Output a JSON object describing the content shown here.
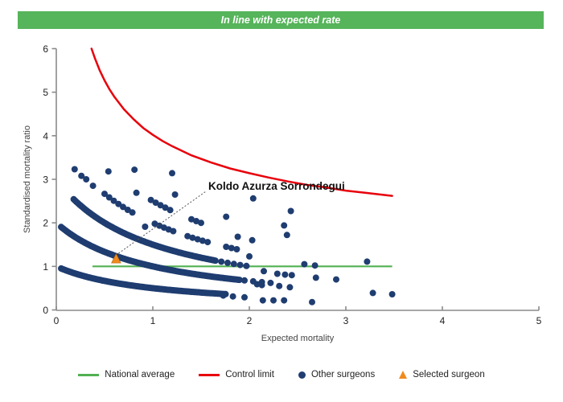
{
  "header": {
    "title": "In line with expected rate"
  },
  "colors": {
    "header_bg": "#56b45a",
    "national_average": "#52b152",
    "control_limit": "#e8000b",
    "other_surgeons": "#1f3d70",
    "selected_surgeon": "#f08a1d",
    "axis": "#8a8a8a",
    "annotation_line": "#555555",
    "tick_text": "#222222",
    "axis_title_text": "#444444"
  },
  "legend": {
    "items": [
      {
        "label": "National average",
        "swatch": "line",
        "color_key": "national_average"
      },
      {
        "label": "Control limit",
        "swatch": "line",
        "color_key": "control_limit"
      },
      {
        "label": "Other surgeons",
        "swatch": "dot",
        "color_key": "other_surgeons"
      },
      {
        "label": "Selected surgeon",
        "swatch": "triangle",
        "color_key": "selected_surgeon"
      }
    ]
  },
  "chart_data": {
    "type": "scatter",
    "title": "",
    "xlabel": "Expected mortality",
    "ylabel": "Standardised mortality ratio",
    "xlim": [
      0,
      5
    ],
    "ylim": [
      0,
      6
    ],
    "x_ticks": [
      0,
      1,
      2,
      3,
      4,
      5
    ],
    "y_ticks": [
      0,
      1,
      2,
      3,
      4,
      5,
      6
    ],
    "grid": false,
    "legend_position": "bottom",
    "national_average": {
      "y": 1,
      "x_start": 0.375,
      "x_end": 3.48
    },
    "control_limit": {
      "points": [
        [
          0.365,
          6.0
        ],
        [
          0.4,
          5.78
        ],
        [
          0.45,
          5.5
        ],
        [
          0.5,
          5.27
        ],
        [
          0.55,
          5.07
        ],
        [
          0.6,
          4.9
        ],
        [
          0.7,
          4.61
        ],
        [
          0.8,
          4.38
        ],
        [
          0.9,
          4.18
        ],
        [
          1.0,
          4.02
        ],
        [
          1.1,
          3.88
        ],
        [
          1.2,
          3.76
        ],
        [
          1.4,
          3.55
        ],
        [
          1.6,
          3.39
        ],
        [
          1.8,
          3.25
        ],
        [
          2.0,
          3.14
        ],
        [
          2.2,
          3.04
        ],
        [
          2.4,
          2.95
        ],
        [
          2.6,
          2.87
        ],
        [
          2.8,
          2.81
        ],
        [
          3.0,
          2.74
        ],
        [
          3.2,
          2.69
        ],
        [
          3.48,
          2.62
        ]
      ]
    },
    "surgeon_bands": [
      {
        "deaths": 1,
        "segments": [
          [
            0.05,
            1.76,
            0.012
          ]
        ]
      },
      {
        "deaths": 2,
        "segments": [
          [
            0.05,
            1.9,
            0.012
          ],
          [
            1.95,
            2.23,
            0.09
          ]
        ]
      },
      {
        "deaths": 3,
        "segments": [
          [
            0.18,
            1.66,
            0.013
          ],
          [
            1.71,
            2.0,
            0.065
          ]
        ]
      },
      {
        "deaths": 4,
        "segments": [
          [
            0.5,
            0.79,
            0.048
          ],
          [
            1.02,
            1.25,
            0.048
          ],
          [
            1.36,
            1.57,
            0.052
          ],
          [
            1.76,
            1.88,
            0.055
          ]
        ]
      },
      {
        "deaths": 5,
        "segments": [
          [
            0.98,
            1.21,
            0.05
          ],
          [
            1.4,
            1.51,
            0.05
          ]
        ]
      }
    ],
    "other_surgeons": [
      [
        0.19,
        3.23
      ],
      [
        0.26,
        3.08
      ],
      [
        0.31,
        3.0
      ],
      [
        0.38,
        2.85
      ],
      [
        0.54,
        3.18
      ],
      [
        0.81,
        3.22
      ],
      [
        1.2,
        3.14
      ],
      [
        0.83,
        2.69
      ],
      [
        1.23,
        2.65
      ],
      [
        0.92,
        1.91
      ],
      [
        1.76,
        2.14
      ],
      [
        2.04,
        2.56
      ],
      [
        2.43,
        2.27
      ],
      [
        2.36,
        1.94
      ],
      [
        2.39,
        1.72
      ],
      [
        1.88,
        1.68
      ],
      [
        2.03,
        1.6
      ],
      [
        2.0,
        1.23
      ],
      [
        2.57,
        1.05
      ],
      [
        2.68,
        1.02
      ],
      [
        3.22,
        1.11
      ],
      [
        2.15,
        0.89
      ],
      [
        2.29,
        0.83
      ],
      [
        2.37,
        0.81
      ],
      [
        2.44,
        0.8
      ],
      [
        2.69,
        0.74
      ],
      [
        2.9,
        0.7
      ],
      [
        2.08,
        0.59
      ],
      [
        2.13,
        0.57
      ],
      [
        2.31,
        0.55
      ],
      [
        2.42,
        0.52
      ],
      [
        3.28,
        0.39
      ],
      [
        3.48,
        0.36
      ],
      [
        1.73,
        0.33
      ],
      [
        1.83,
        0.31
      ],
      [
        1.95,
        0.29
      ],
      [
        2.14,
        0.22
      ],
      [
        2.25,
        0.22
      ],
      [
        2.36,
        0.22
      ],
      [
        2.65,
        0.18
      ]
    ],
    "selected_surgeon": {
      "name": "Koldo Azurza Sorrondegui",
      "x": 0.62,
      "y": 1.17,
      "label_anchor": {
        "x": 1.575,
        "y": 2.76
      },
      "leader_line": {
        "x1": 0.645,
        "y1": 1.3,
        "x2": 1.555,
        "y2": 2.73
      }
    }
  }
}
